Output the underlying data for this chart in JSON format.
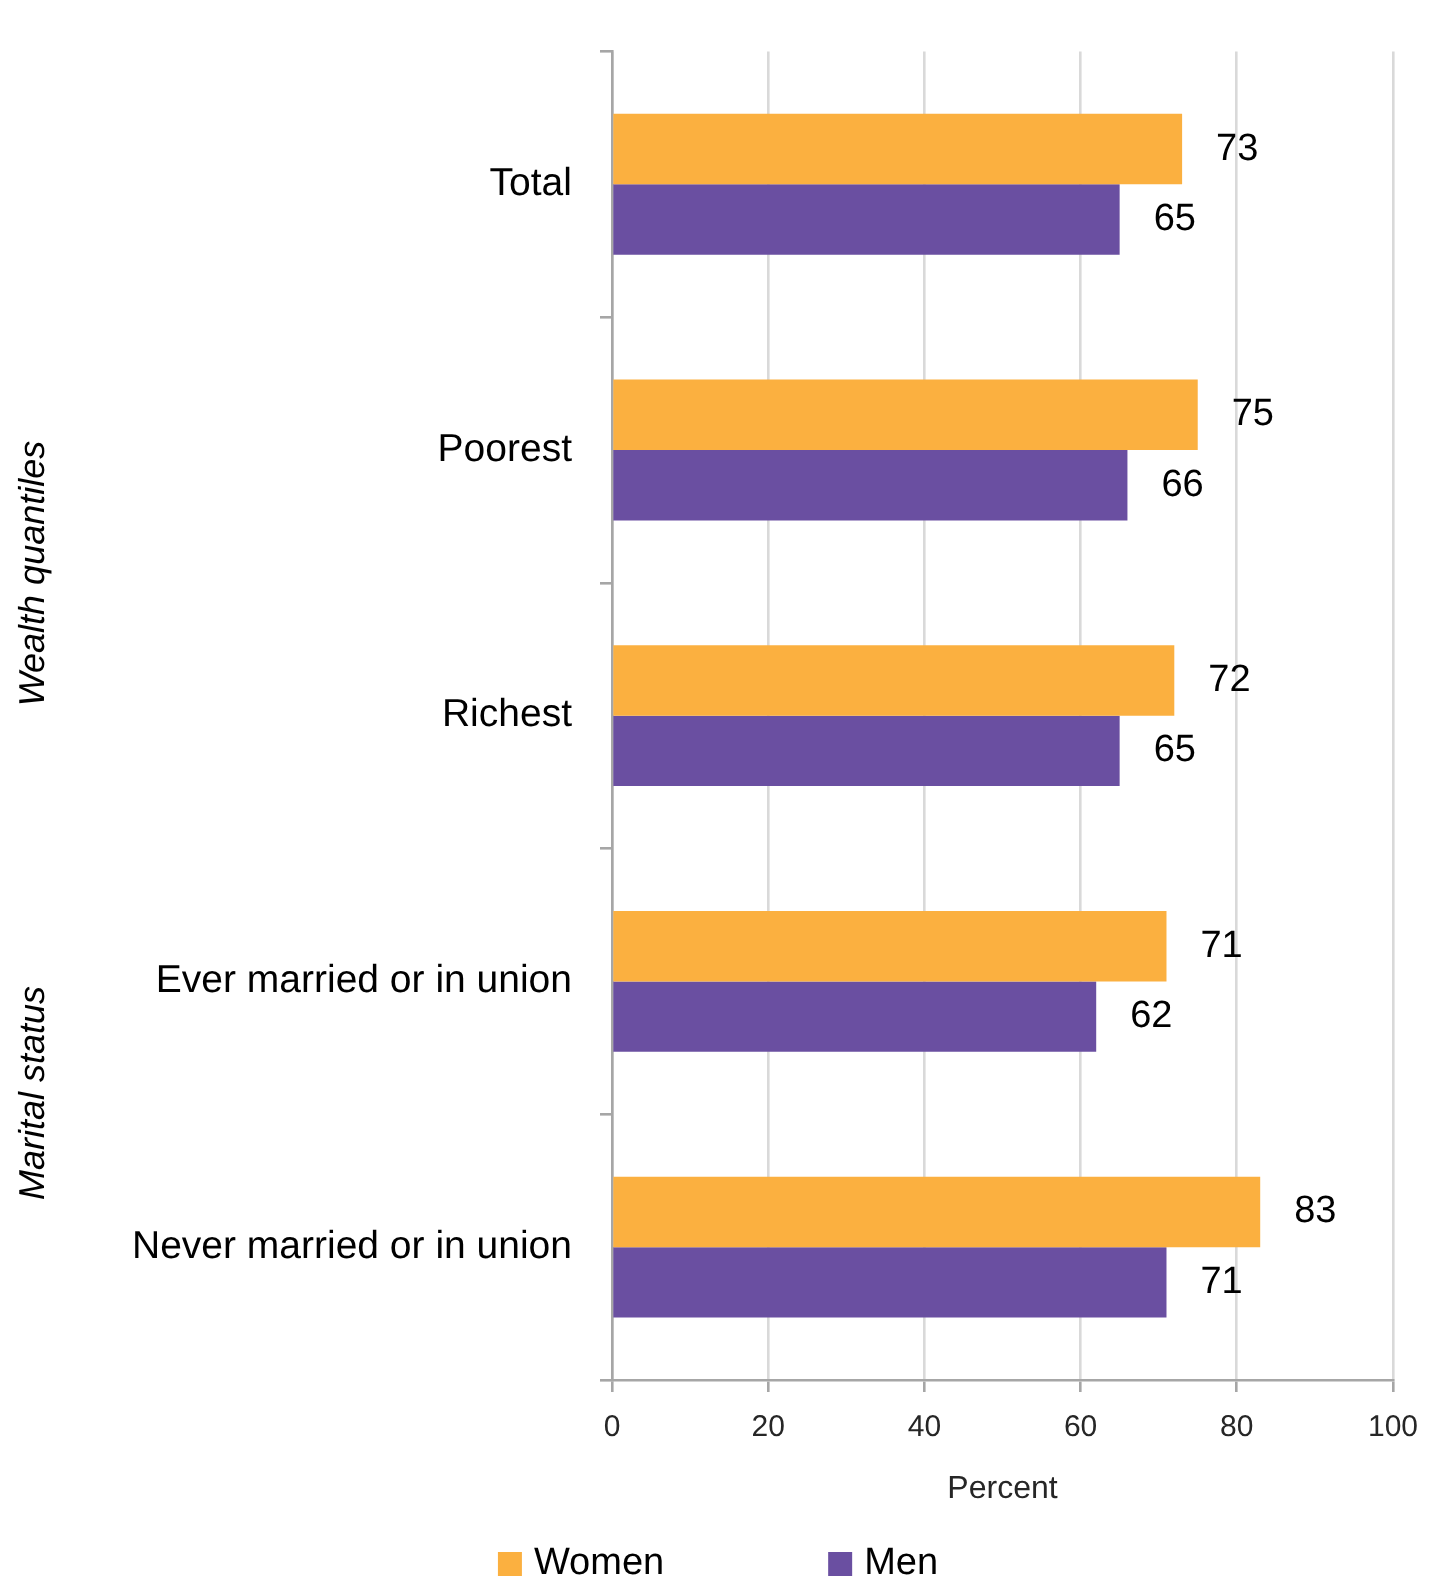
{
  "chart_data": {
    "type": "bar",
    "orientation": "horizontal",
    "categories": [
      "Total",
      "Poorest",
      "Richest",
      "Ever married or in union",
      "Never married or in union"
    ],
    "series": [
      {
        "name": "Women",
        "color": "#fbb040",
        "values": [
          73,
          75,
          72,
          71,
          83
        ]
      },
      {
        "name": "Men",
        "color": "#6a4fa1",
        "values": [
          65,
          66,
          65,
          62,
          71
        ]
      }
    ],
    "xlabel": "Percent",
    "xlim": [
      0,
      100
    ],
    "xticks": [
      0,
      20,
      40,
      60,
      80,
      100
    ],
    "grid": "x",
    "legend": "bottom",
    "data_labels": true,
    "annotations": [
      "Wealth quantiles",
      "Marital status"
    ]
  }
}
